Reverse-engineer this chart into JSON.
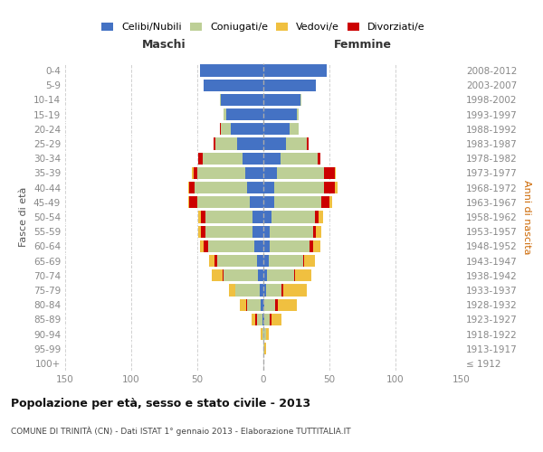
{
  "age_groups": [
    "100+",
    "95-99",
    "90-94",
    "85-89",
    "80-84",
    "75-79",
    "70-74",
    "65-69",
    "60-64",
    "55-59",
    "50-54",
    "45-49",
    "40-44",
    "35-39",
    "30-34",
    "25-29",
    "20-24",
    "15-19",
    "10-14",
    "5-9",
    "0-4"
  ],
  "birth_years": [
    "≤ 1912",
    "1913-1917",
    "1918-1922",
    "1923-1927",
    "1928-1932",
    "1933-1937",
    "1938-1942",
    "1943-1947",
    "1948-1952",
    "1953-1957",
    "1958-1962",
    "1963-1967",
    "1968-1972",
    "1973-1977",
    "1978-1982",
    "1983-1987",
    "1988-1992",
    "1993-1997",
    "1998-2002",
    "2003-2007",
    "2008-2012"
  ],
  "colors": {
    "celibe": "#4472C4",
    "coniugato": "#BDCF96",
    "vedovo": "#F0C040",
    "divorziato": "#CC0000"
  },
  "legend_labels": [
    "Celibi/Nubili",
    "Coniugati/e",
    "Vedovi/e",
    "Divorziati/e"
  ],
  "title_main": "Popolazione per età, sesso e stato civile - 2013",
  "title_sub": "COMUNE DI TRINITÀ (CN) - Dati ISTAT 1° gennaio 2013 - Elaborazione TUTTITALIA.IT",
  "xlabel_left": "Maschi",
  "xlabel_right": "Femmine",
  "ylabel_left": "Fasce di età",
  "ylabel_right": "Anni di nascita",
  "xlim": 150,
  "males": {
    "celibe": [
      0,
      0,
      0,
      1,
      2,
      3,
      4,
      5,
      7,
      8,
      8,
      10,
      12,
      14,
      16,
      20,
      25,
      28,
      32,
      45,
      48
    ],
    "coniugato": [
      0,
      0,
      1,
      4,
      10,
      18,
      26,
      30,
      35,
      36,
      36,
      40,
      40,
      36,
      30,
      16,
      7,
      2,
      1,
      0,
      0
    ],
    "vedovo": [
      0,
      0,
      1,
      3,
      5,
      5,
      8,
      4,
      3,
      2,
      2,
      1,
      1,
      1,
      0,
      0,
      0,
      0,
      0,
      0,
      0
    ],
    "divorziato": [
      0,
      0,
      0,
      1,
      1,
      0,
      1,
      2,
      3,
      3,
      3,
      6,
      4,
      3,
      3,
      2,
      1,
      0,
      0,
      0,
      0
    ]
  },
  "females": {
    "nubile": [
      0,
      0,
      0,
      1,
      1,
      2,
      3,
      4,
      5,
      5,
      6,
      8,
      8,
      10,
      13,
      17,
      20,
      25,
      28,
      40,
      48
    ],
    "coniugata": [
      0,
      1,
      2,
      4,
      8,
      12,
      20,
      26,
      30,
      33,
      33,
      36,
      38,
      36,
      28,
      16,
      7,
      2,
      1,
      0,
      0
    ],
    "vedova": [
      0,
      1,
      2,
      8,
      14,
      18,
      12,
      8,
      5,
      4,
      3,
      2,
      2,
      1,
      0,
      0,
      0,
      0,
      0,
      0,
      0
    ],
    "divorziata": [
      0,
      0,
      0,
      1,
      2,
      1,
      1,
      1,
      3,
      2,
      3,
      6,
      8,
      8,
      2,
      1,
      0,
      0,
      0,
      0,
      0
    ]
  },
  "background_color": "#FFFFFF",
  "grid_color": "#CCCCCC",
  "tick_color": "#888888"
}
